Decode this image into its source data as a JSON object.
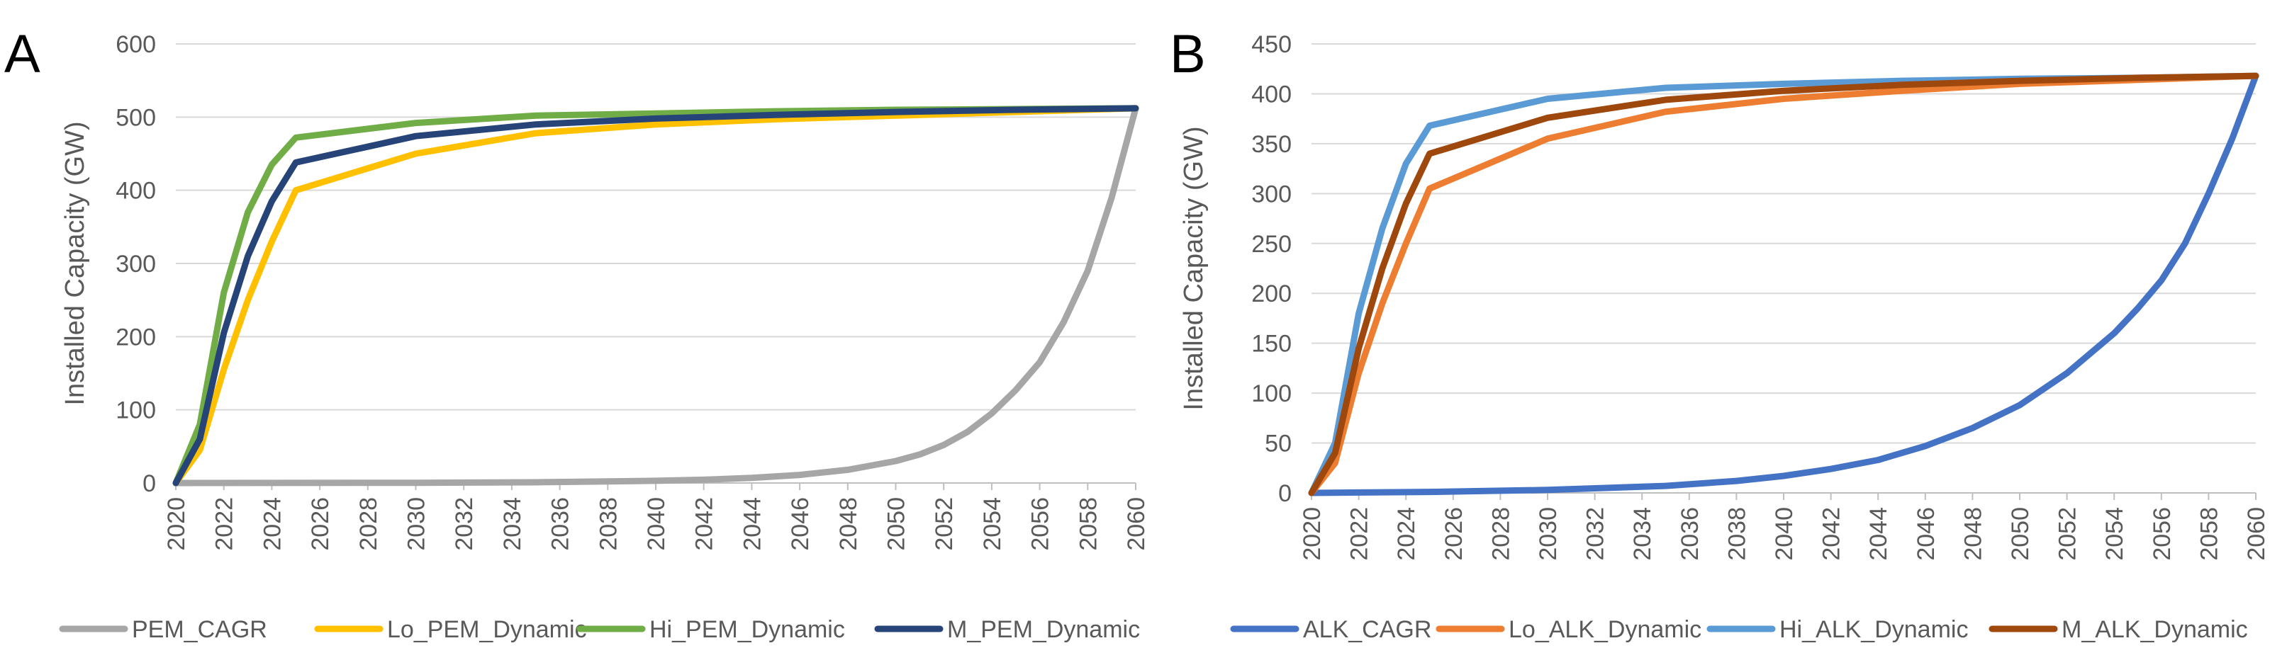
{
  "chart_data": [
    {
      "panel": "A",
      "type": "line",
      "title": "",
      "xlabel": "",
      "ylabel": "Installed Capacity (GW)",
      "ylim": [
        0,
        600
      ],
      "yticks": [
        0,
        100,
        200,
        300,
        400,
        500,
        600
      ],
      "xlim": [
        2020,
        2060
      ],
      "xticks": [
        2020,
        2022,
        2024,
        2026,
        2028,
        2030,
        2032,
        2034,
        2036,
        2038,
        2040,
        2042,
        2044,
        2046,
        2048,
        2050,
        2052,
        2054,
        2056,
        2058,
        2060
      ],
      "grid": true,
      "legend_position": "bottom",
      "series": [
        {
          "name": "PEM_CAGR",
          "color": "#a6a6a6",
          "x": [
            2020,
            2030,
            2035,
            2040,
            2042,
            2044,
            2046,
            2048,
            2050,
            2051,
            2052,
            2053,
            2054,
            2055,
            2056,
            2057,
            2058,
            2059,
            2060
          ],
          "y": [
            0,
            0.3,
            1,
            3,
            4.5,
            7,
            11,
            18,
            30,
            39,
            52,
            70,
            95,
            127,
            165,
            220,
            290,
            390,
            512
          ]
        },
        {
          "name": "Lo_PEM_Dynamic",
          "color": "#ffc000",
          "x": [
            2020,
            2021,
            2022,
            2023,
            2024,
            2025,
            2030,
            2035,
            2040,
            2045,
            2050,
            2055,
            2060
          ],
          "y": [
            0,
            45,
            155,
            250,
            330,
            400,
            450,
            478,
            490,
            497,
            502,
            507,
            512
          ]
        },
        {
          "name": "Hi_PEM_Dynamic",
          "color": "#70ad47",
          "x": [
            2020,
            2021,
            2022,
            2023,
            2024,
            2025,
            2030,
            2035,
            2040,
            2045,
            2050,
            2055,
            2060
          ],
          "y": [
            0,
            80,
            260,
            370,
            435,
            472,
            492,
            502,
            505,
            508,
            510,
            511,
            512
          ]
        },
        {
          "name": "M_PEM_Dynamic",
          "color": "#264478",
          "x": [
            2020,
            2021,
            2022,
            2023,
            2024,
            2025,
            2030,
            2035,
            2040,
            2045,
            2050,
            2055,
            2060
          ],
          "y": [
            0,
            60,
            205,
            310,
            385,
            438,
            474,
            490,
            498,
            503,
            507,
            510,
            512
          ]
        }
      ]
    },
    {
      "panel": "B",
      "type": "line",
      "title": "",
      "xlabel": "",
      "ylabel": "Installed Capacity (GW)",
      "ylim": [
        0,
        450
      ],
      "yticks": [
        0,
        50,
        100,
        150,
        200,
        250,
        300,
        350,
        400,
        450
      ],
      "xlim": [
        2020,
        2060
      ],
      "xticks": [
        2020,
        2022,
        2024,
        2026,
        2028,
        2030,
        2032,
        2034,
        2036,
        2038,
        2040,
        2042,
        2044,
        2046,
        2048,
        2050,
        2052,
        2054,
        2056,
        2058,
        2060
      ],
      "grid": true,
      "legend_position": "bottom",
      "series": [
        {
          "name": "ALK_CAGR",
          "color": "#4472c4",
          "x": [
            2020,
            2025,
            2030,
            2035,
            2038,
            2040,
            2042,
            2044,
            2046,
            2048,
            2050,
            2052,
            2054,
            2055,
            2056,
            2057,
            2058,
            2059,
            2060
          ],
          "y": [
            0,
            1,
            3,
            7,
            12,
            17,
            24,
            33,
            47,
            65,
            88,
            120,
            160,
            185,
            213,
            250,
            300,
            355,
            418
          ]
        },
        {
          "name": "Lo_ALK_Dynamic",
          "color": "#ed7d31",
          "x": [
            2020,
            2021,
            2022,
            2023,
            2024,
            2025,
            2030,
            2035,
            2040,
            2045,
            2050,
            2055,
            2060
          ],
          "y": [
            0,
            30,
            120,
            190,
            250,
            305,
            355,
            382,
            395,
            403,
            410,
            414,
            418
          ]
        },
        {
          "name": "Hi_ALK_Dynamic",
          "color": "#5b9bd5",
          "x": [
            2020,
            2021,
            2022,
            2023,
            2024,
            2025,
            2030,
            2035,
            2040,
            2045,
            2050,
            2055,
            2060
          ],
          "y": [
            0,
            50,
            180,
            265,
            330,
            368,
            395,
            406,
            410,
            413,
            415,
            416,
            418
          ]
        },
        {
          "name": "M_ALK_Dynamic",
          "color": "#9e480e",
          "x": [
            2020,
            2021,
            2022,
            2023,
            2024,
            2025,
            2030,
            2035,
            2040,
            2045,
            2050,
            2055,
            2060
          ],
          "y": [
            0,
            40,
            145,
            225,
            290,
            340,
            376,
            394,
            403,
            409,
            413,
            416,
            418
          ]
        }
      ]
    }
  ]
}
